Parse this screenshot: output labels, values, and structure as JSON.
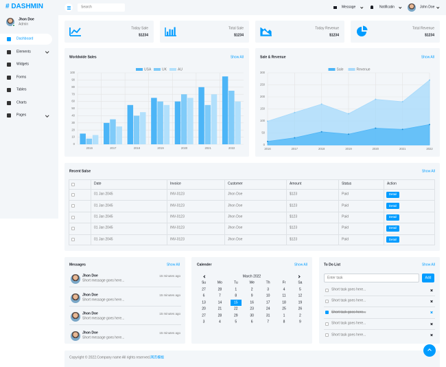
{
  "brand": "# DASHMIN",
  "user": {
    "name": "Jhon Doe",
    "role": "Admin"
  },
  "nav": [
    "Dashboard",
    "Elements",
    "Widgets",
    "Forms",
    "Tables",
    "Charts",
    "Pages"
  ],
  "topbar": {
    "search": "Search",
    "message": "Message",
    "notification": "Notificatin",
    "user": "John Doe"
  },
  "stats": [
    {
      "label": "Today Sale",
      "value": "$1234"
    },
    {
      "label": "Total Sale",
      "value": "$1234"
    },
    {
      "label": "Today Revenue",
      "value": "$1234"
    },
    {
      "label": "Total Revenue",
      "value": "$1234"
    }
  ],
  "chart_data": [
    {
      "type": "bar",
      "title": "Worldwide Sales",
      "link": "Show All",
      "categories": [
        "2016",
        "2017",
        "2018",
        "2019",
        "2020",
        "2021",
        "2022"
      ],
      "series": [
        {
          "name": "USA",
          "color": "#4cb5f7",
          "values": [
            15,
            30,
            55,
            65,
            60,
            80,
            95
          ]
        },
        {
          "name": "UK",
          "color": "#7fcbf9",
          "values": [
            8,
            35,
            40,
            60,
            70,
            55,
            75
          ]
        },
        {
          "name": "AU",
          "color": "#b2e0fc",
          "values": [
            13,
            25,
            45,
            55,
            65,
            70,
            60
          ]
        }
      ],
      "ylim": [
        0,
        100
      ],
      "yticks": [
        0,
        10,
        20,
        30,
        40,
        50,
        60,
        70,
        80,
        90,
        100
      ],
      "grid": true
    },
    {
      "type": "area",
      "title": "Sale & Revenue",
      "link": "Show All",
      "categories": [
        "2016",
        "2017",
        "2018",
        "2019",
        "2020",
        "2021",
        "2022"
      ],
      "series": [
        {
          "name": "Sale",
          "color": "#4cb5f7",
          "values": [
            15,
            30,
            55,
            45,
            70,
            65,
            85
          ]
        },
        {
          "name": "Revenue",
          "color": "#a6d9fb",
          "values": [
            99,
            135,
            170,
            130,
            190,
            180,
            270
          ]
        }
      ],
      "ylim": [
        0,
        300
      ],
      "yticks": [
        0,
        50,
        100,
        150,
        200,
        250,
        300
      ],
      "grid": true
    }
  ],
  "recent_sales": {
    "title": "Recent Salse",
    "link": "Show All",
    "columns": [
      "Date",
      "Invoice",
      "Customer",
      "Amount",
      "Status",
      "Action"
    ],
    "rows": [
      [
        "01 Jan 2045",
        "INV-0123",
        "Jhon Doe",
        "$123",
        "Paid",
        "Detail"
      ],
      [
        "01 Jan 2045",
        "INV-0123",
        "Jhon Doe",
        "$123",
        "Paid",
        "Detail"
      ],
      [
        "01 Jan 2045",
        "INV-0123",
        "Jhon Doe",
        "$123",
        "Paid",
        "Detail"
      ],
      [
        "01 Jan 2045",
        "INV-0123",
        "Jhon Doe",
        "$123",
        "Paid",
        "Detail"
      ],
      [
        "01 Jan 2045",
        "INV-0123",
        "Jhon Doe",
        "$123",
        "Paid",
        "Detail"
      ]
    ]
  },
  "messages": {
    "title": "Messages",
    "link": "Show All",
    "items": [
      {
        "name": "Jhon Doe",
        "text": "Short message goes here...",
        "time": "15 minutes ago"
      },
      {
        "name": "Jhon Doe",
        "text": "Short message goes here...",
        "time": "15 minutes ago"
      },
      {
        "name": "Jhon Doe",
        "text": "Short message goes here...",
        "time": "15 minutes ago"
      },
      {
        "name": "Jhon Doe",
        "text": "Short message goes here...",
        "time": "15 minutes ago"
      }
    ]
  },
  "calendar": {
    "title": "Calender",
    "link": "Show All",
    "month": "March 2022",
    "weekdays": [
      "Su",
      "Mo",
      "Tu",
      "We",
      "Th",
      "Fr",
      "Sa"
    ],
    "days": [
      27,
      28,
      1,
      2,
      3,
      4,
      5,
      6,
      7,
      8,
      9,
      10,
      11,
      12,
      13,
      14,
      15,
      16,
      17,
      18,
      19,
      20,
      21,
      22,
      23,
      24,
      25,
      26,
      27,
      28,
      29,
      30,
      31,
      1,
      2,
      3,
      4,
      5,
      6,
      7,
      8,
      9
    ],
    "selected": 15
  },
  "todo": {
    "title": "To Do List",
    "link": "Show All",
    "placeholder": "Enter task",
    "button": "Add",
    "tasks": [
      {
        "text": "Short task goes here...",
        "done": false
      },
      {
        "text": "Short task goes here...",
        "done": false
      },
      {
        "text": "Short task goes here...",
        "done": true
      },
      {
        "text": "Short task goes here...",
        "done": false
      },
      {
        "text": "Short task goes here...",
        "done": false
      }
    ]
  },
  "footer": {
    "text": "Copyright © 2022.Company name All rights reserved.",
    "link": "网页模板"
  }
}
